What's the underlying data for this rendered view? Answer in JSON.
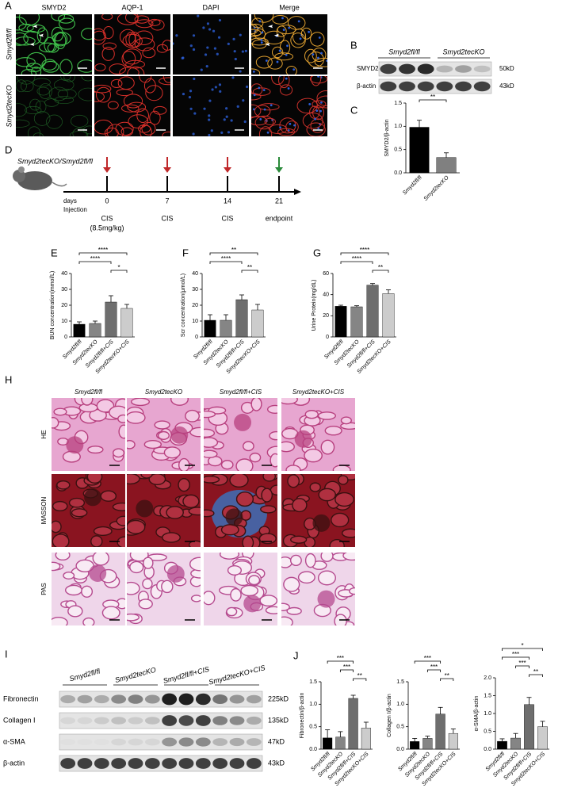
{
  "panel_labels": [
    "A",
    "B",
    "C",
    "D",
    "E",
    "F",
    "G",
    "H",
    "I",
    "J"
  ],
  "panel_a": {
    "columns": [
      "SMYD2",
      "AQP-1",
      "DAPI",
      "Merge"
    ],
    "rows": [
      "Smyd2fl/fl",
      "Smyd2tecKO"
    ]
  },
  "panel_b": {
    "groups": [
      "Smyd2fl/fl",
      "Smyd2tecKO"
    ],
    "bands": [
      "SMYD2",
      "β-actin"
    ],
    "sizes": [
      "50kD",
      "43kD"
    ]
  },
  "panel_d": {
    "strain": "Smyd2tecKO/Smyd2fl/fl",
    "axis_labels": [
      "days",
      "Injection"
    ],
    "days": [
      0,
      7,
      14,
      21
    ],
    "events": [
      "CIS",
      "CIS",
      "CIS",
      "endpoint"
    ],
    "dose": "(8.5mg/kg)"
  },
  "panel_h": {
    "columns": [
      "Smyd2fl/fl",
      "Smyd2tecKO",
      "Smyd2fl/fl+CIS",
      "Smyd2tecKO+CIS"
    ],
    "rows": [
      "HE",
      "MASSON",
      "PAS"
    ]
  },
  "panel_i": {
    "groups": [
      "Smyd2fl/fl",
      "Smyd2tecKO",
      "Smyd2fl/fl+CIS",
      "Smyd2tecKO+CIS"
    ],
    "bands": [
      "Fibronectin",
      "Collagen I",
      "α-SMA",
      "β-actin"
    ],
    "sizes": [
      "225kD",
      "135kD",
      "47kD",
      "43kD"
    ]
  },
  "chart_data": [
    {
      "type": "bar",
      "ylabel": "SMYD2/β-actin",
      "categories": [
        "Smyd2fl/fl",
        "Smyd2tecKO"
      ],
      "values": [
        0.98,
        0.33
      ],
      "errors": [
        0.15,
        0.1
      ],
      "colors": [
        "#000000",
        "#808080"
      ],
      "ylim": [
        0,
        1.5
      ],
      "yticks": [
        {
          "value": 0,
          "label": "0.0"
        },
        0.5,
        {
          "value": 1,
          "label": "1.0"
        },
        1.5
      ],
      "annotations": [
        {
          "label": "**",
          "between": [
            "Smyd2fl/fl",
            "Smyd2tecKO"
          ]
        }
      ]
    },
    {
      "type": "bar",
      "ylabel": "BUN concentration(mmol/L)",
      "categories": [
        "Smyd2fl/fl",
        "Smyd2tecKO",
        "Smyd2fl/fl+CIS",
        "Smyd2tecKO+CIS"
      ],
      "values": [
        8,
        8.5,
        22,
        18
      ],
      "errors": [
        1.5,
        1.5,
        4,
        2.5
      ],
      "colors": [
        "#000000",
        "#858585",
        "#6e6e6e",
        "#cccccc"
      ],
      "ylim": [
        0,
        40
      ],
      "yticks": [
        0,
        10,
        20,
        30,
        40
      ],
      "annotations": [
        {
          "label": "****",
          "between": [
            "Smyd2fl/fl",
            "Smyd2tecKO+CIS"
          ]
        },
        {
          "label": "****",
          "between": [
            "Smyd2fl/fl",
            "Smyd2fl/fl+CIS"
          ]
        },
        {
          "label": "*",
          "between": [
            "Smyd2fl/fl+CIS",
            "Smyd2tecKO+CIS"
          ]
        }
      ]
    },
    {
      "type": "bar",
      "ylabel": "Scr concentration(μmol/L)",
      "categories": [
        "Smyd2fl/fl",
        "Smyd2tecKO",
        "Smyd2fl/fl+CIS",
        "Smyd2tecKO+CIS"
      ],
      "values": [
        10.5,
        10.5,
        23.5,
        17
      ],
      "errors": [
        3.5,
        3.5,
        3,
        3.5
      ],
      "colors": [
        "#000000",
        "#858585",
        "#6e6e6e",
        "#cccccc"
      ],
      "ylim": [
        0,
        40
      ],
      "yticks": [
        0,
        10,
        20,
        30,
        40
      ],
      "annotations": [
        {
          "label": "**",
          "between": [
            "Smyd2fl/fl",
            "Smyd2tecKO+CIS"
          ]
        },
        {
          "label": "****",
          "between": [
            "Smyd2fl/fl",
            "Smyd2fl/fl+CIS"
          ]
        },
        {
          "label": "**",
          "between": [
            "Smyd2fl/fl+CIS",
            "Smyd2tecKO+CIS"
          ]
        }
      ]
    },
    {
      "type": "bar",
      "ylabel": "Urine Protein(mg/dL)",
      "categories": [
        "Smyd2fl/fl",
        "Smyd2tecKO",
        "Smyd2fl/fl+CIS",
        "Smyd2tecKO+CIS"
      ],
      "values": [
        29,
        28.5,
        49,
        41
      ],
      "errors": [
        1,
        1,
        1.5,
        3.5
      ],
      "colors": [
        "#000000",
        "#858585",
        "#6e6e6e",
        "#cccccc"
      ],
      "ylim": [
        0,
        60
      ],
      "yticks": [
        0,
        20,
        40,
        60
      ],
      "annotations": [
        {
          "label": "****",
          "between": [
            "Smyd2fl/fl",
            "Smyd2tecKO+CIS"
          ]
        },
        {
          "label": "****",
          "between": [
            "Smyd2fl/fl",
            "Smyd2fl/fl+CIS"
          ]
        },
        {
          "label": "**",
          "between": [
            "Smyd2fl/fl+CIS",
            "Smyd2tecKO+CIS"
          ]
        }
      ]
    },
    {
      "type": "bar",
      "ylabel": "Fibronectin/β-actin",
      "categories": [
        "Smyd2fl/fl",
        "Smyd2tecKO",
        "Smyd2fl/fl+CIS",
        "Smyd2tecKO+CIS"
      ],
      "values": [
        0.25,
        0.27,
        1.13,
        0.47
      ],
      "errors": [
        0.18,
        0.12,
        0.07,
        0.13
      ],
      "colors": [
        "#000000",
        "#858585",
        "#6e6e6e",
        "#cccccc"
      ],
      "ylim": [
        0,
        1.5
      ],
      "yticks": [
        {
          "value": 0,
          "label": "0.0"
        },
        0.5,
        {
          "value": 1,
          "label": "1.0"
        },
        1.5
      ],
      "annotations": [
        {
          "label": "***",
          "between": [
            "Smyd2fl/fl",
            "Smyd2fl/fl+CIS"
          ]
        },
        {
          "label": "***",
          "between": [
            "Smyd2tecKO",
            "Smyd2fl/fl+CIS"
          ]
        },
        {
          "label": "**",
          "between": [
            "Smyd2fl/fl+CIS",
            "Smyd2tecKO+CIS"
          ]
        }
      ]
    },
    {
      "type": "bar",
      "ylabel": "Collagen I/β-actin",
      "categories": [
        "Smyd2fl/fl",
        "Smyd2tecKO",
        "Smyd2fl/fl+CIS",
        "Smyd2tecKO+CIS"
      ],
      "values": [
        0.17,
        0.24,
        0.78,
        0.35
      ],
      "errors": [
        0.07,
        0.05,
        0.15,
        0.1
      ],
      "colors": [
        "#000000",
        "#858585",
        "#6e6e6e",
        "#cccccc"
      ],
      "ylim": [
        0,
        1.5
      ],
      "yticks": [
        {
          "value": 0,
          "label": "0.0"
        },
        0.5,
        {
          "value": 1,
          "label": "1.0"
        },
        1.5
      ],
      "annotations": [
        {
          "label": "***",
          "between": [
            "Smyd2fl/fl",
            "Smyd2fl/fl+CIS"
          ]
        },
        {
          "label": "***",
          "between": [
            "Smyd2tecKO",
            "Smyd2fl/fl+CIS"
          ]
        },
        {
          "label": "**",
          "between": [
            "Smyd2fl/fl+CIS",
            "Smyd2tecKO+CIS"
          ]
        }
      ]
    },
    {
      "type": "bar",
      "ylabel": "α-SMA/β-actin",
      "categories": [
        "Smyd2fl/fl",
        "Smyd2tecKO",
        "Smyd2fl/fl+CIS",
        "Smyd2tecKO+CIS"
      ],
      "values": [
        0.22,
        0.31,
        1.25,
        0.63
      ],
      "errors": [
        0.07,
        0.13,
        0.2,
        0.15
      ],
      "colors": [
        "#000000",
        "#858585",
        "#6e6e6e",
        "#cccccc"
      ],
      "ylim": [
        0,
        2
      ],
      "yticks": [
        {
          "value": 0,
          "label": "0.0"
        },
        0.5,
        {
          "value": 1,
          "label": "1.0"
        },
        1.5,
        {
          "value": 2,
          "label": "2.0"
        }
      ],
      "annotations": [
        {
          "label": "*",
          "between": [
            "Smyd2fl/fl",
            "Smyd2tecKO+CIS"
          ]
        },
        {
          "label": "***",
          "between": [
            "Smyd2fl/fl",
            "Smyd2fl/fl+CIS"
          ]
        },
        {
          "label": "***",
          "between": [
            "Smyd2tecKO",
            "Smyd2fl/fl+CIS"
          ]
        },
        {
          "label": "**",
          "between": [
            "Smyd2fl/fl+CIS",
            "Smyd2tecKO+CIS"
          ]
        }
      ]
    }
  ]
}
